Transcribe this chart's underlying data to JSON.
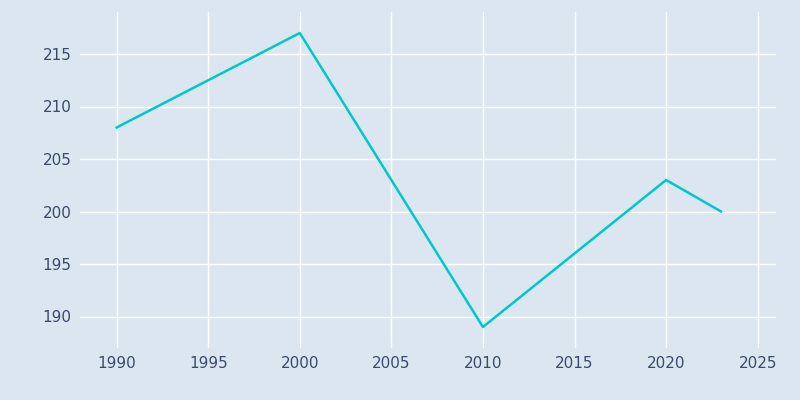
{
  "years": [
    1990,
    2000,
    2010,
    2020,
    2022,
    2023
  ],
  "population": [
    208,
    217,
    189,
    203,
    201,
    200
  ],
  "line_color": "#00c8c8",
  "bg_color": "#dce6f0",
  "grid_color": "#ffffff",
  "xlim": [
    1988,
    2026
  ],
  "ylim": [
    187,
    219
  ],
  "xticks": [
    1990,
    1995,
    2000,
    2005,
    2010,
    2015,
    2020,
    2025
  ],
  "yticks": [
    190,
    195,
    200,
    205,
    210,
    215
  ],
  "linewidth": 1.8,
  "tick_color": "#3a4a6b",
  "tick_fontsize": 11
}
